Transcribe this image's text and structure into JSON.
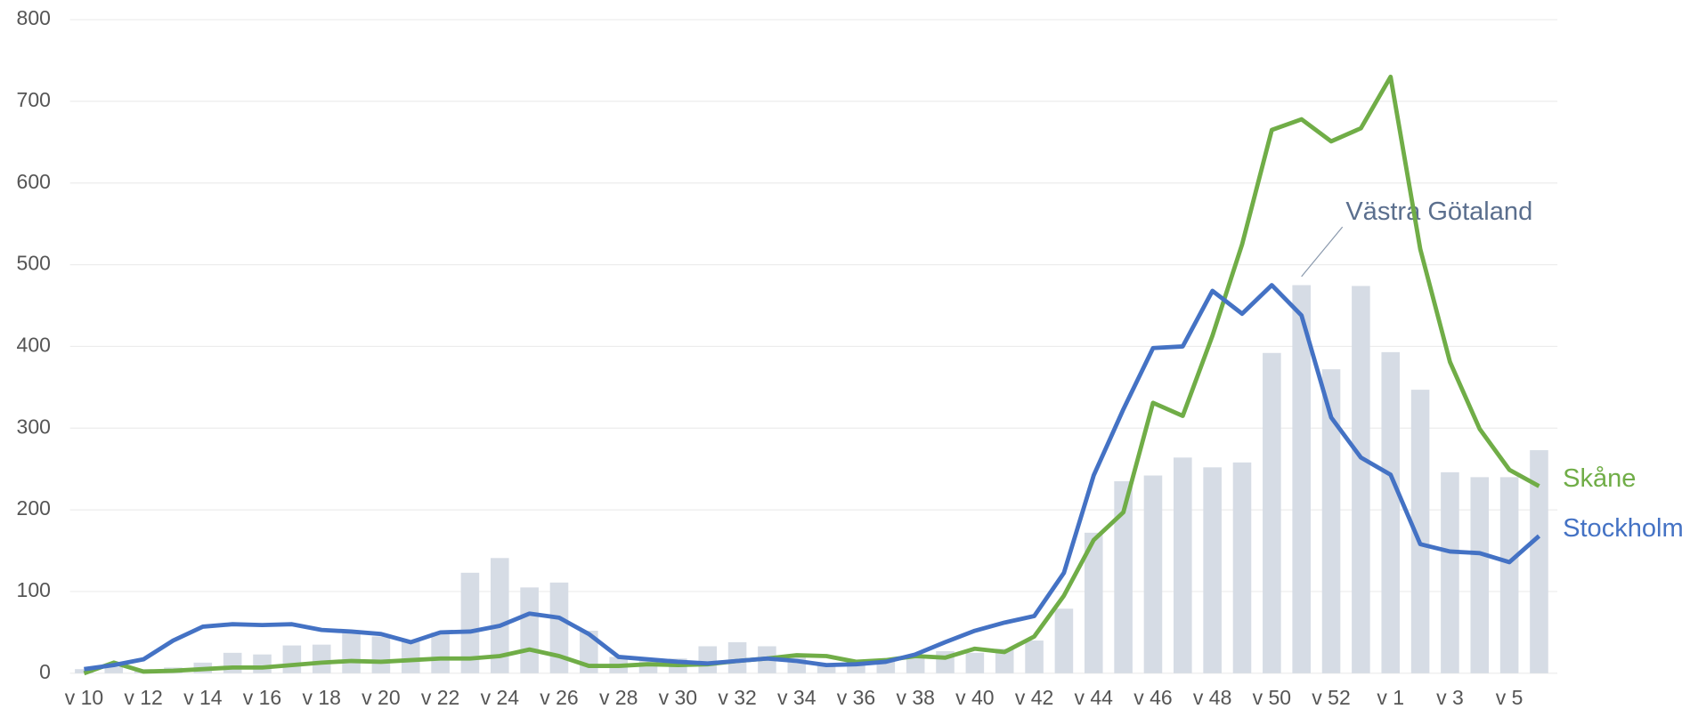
{
  "chart_data": {
    "type": "combo",
    "categories": [
      "v 10",
      null,
      "v 12",
      null,
      "v 14",
      null,
      "v 16",
      null,
      "v 18",
      null,
      "v 20",
      null,
      "v 22",
      null,
      "v 24",
      null,
      "v 26",
      null,
      "v 28",
      null,
      "v 30",
      null,
      "v 32",
      null,
      "v 34",
      null,
      "v 36",
      null,
      "v 38",
      null,
      "v 40",
      null,
      "v 42",
      null,
      "v 44",
      null,
      "v 46",
      null,
      "v 48",
      null,
      "v 50",
      null,
      "v 52",
      null,
      "v 1",
      null,
      "v 3",
      null,
      "v 5",
      null
    ],
    "series": [
      {
        "name": "Västra Götaland",
        "type": "bar",
        "color": "#d6dce5",
        "values": [
          5,
          8,
          5,
          7,
          13,
          25,
          23,
          34,
          35,
          50,
          45,
          40,
          50,
          123,
          141,
          105,
          111,
          52,
          20,
          15,
          18,
          33,
          38,
          33,
          20,
          12,
          12,
          15,
          22,
          27,
          25,
          30,
          40,
          79,
          172,
          235,
          242,
          264,
          252,
          258,
          392,
          475,
          372,
          474,
          393,
          347,
          246,
          240,
          240,
          273
        ]
      },
      {
        "name": "Skåne",
        "type": "line",
        "color": "#70ad47",
        "values": [
          0,
          13,
          2,
          3,
          5,
          7,
          7,
          10,
          13,
          15,
          14,
          16,
          18,
          18,
          21,
          29,
          21,
          9,
          9,
          11,
          10,
          11,
          15,
          18,
          22,
          21,
          14,
          16,
          21,
          19,
          30,
          26,
          45,
          95,
          163,
          197,
          331,
          315,
          413,
          525,
          665,
          678,
          651,
          667,
          730,
          519,
          381,
          299,
          249,
          229
        ]
      },
      {
        "name": "Stockholm",
        "type": "line",
        "color": "#4472c4",
        "values": [
          5,
          10,
          17,
          40,
          57,
          60,
          59,
          60,
          53,
          51,
          48,
          38,
          50,
          51,
          58,
          73,
          68,
          48,
          20,
          17,
          14,
          12,
          15,
          18,
          15,
          10,
          11,
          14,
          23,
          38,
          52,
          62,
          70,
          123,
          242,
          323,
          398,
          400,
          468,
          440,
          475,
          438,
          313,
          264,
          243,
          158,
          149,
          147,
          136,
          168
        ]
      }
    ],
    "ylim": [
      0,
      800
    ],
    "yticks": [
      0,
      100,
      200,
      300,
      400,
      500,
      600,
      700,
      800
    ],
    "grid": true
  }
}
